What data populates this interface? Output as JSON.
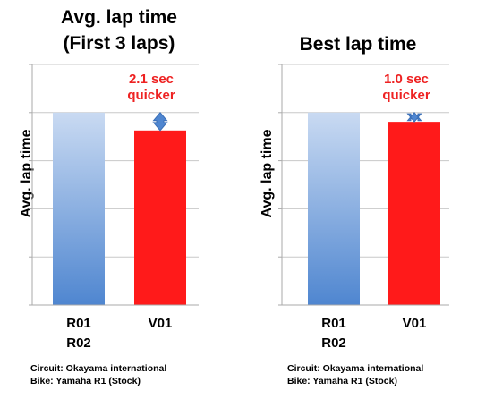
{
  "charts": [
    {
      "title_lines": [
        "Avg. lap time",
        "(First 3 laps)"
      ],
      "annotation_lines": [
        "2.1 sec",
        "quicker"
      ],
      "footer": [
        "Circuit: Okayama international",
        "Bike: Yamaha R1 (Stock)"
      ]
    },
    {
      "title_lines": [
        "Best lap time"
      ],
      "annotation_lines": [
        "1.0 sec",
        "quicker"
      ],
      "footer": [
        "Circuit: Okayama international",
        "Bike: Yamaha R1 (Stock)"
      ]
    }
  ],
  "chart_data": [
    {
      "type": "bar",
      "title": "Avg. lap time (First 3 laps)",
      "ylabel": "Avg. lap time",
      "categories": [
        "R01\nR02",
        "V01"
      ],
      "values": [
        100,
        90.7
      ],
      "ylim": [
        0,
        125
      ],
      "grid": true,
      "bar_colors": [
        "#4f86d0",
        "#ff1a1a"
      ],
      "annotation": "2.1 sec quicker",
      "annotation_color": "#ee2222",
      "arrow_color": "#4f86d0"
    },
    {
      "type": "bar",
      "title": "Best lap time",
      "ylabel": "Avg. lap time",
      "categories": [
        "R01\nR02",
        "V01"
      ],
      "values": [
        100,
        95.2
      ],
      "ylim": [
        0,
        125
      ],
      "grid": true,
      "bar_colors": [
        "#4f86d0",
        "#ff1a1a"
      ],
      "annotation": "1.0 sec quicker",
      "annotation_color": "#ee2222",
      "arrow_color": "#4f86d0"
    }
  ]
}
